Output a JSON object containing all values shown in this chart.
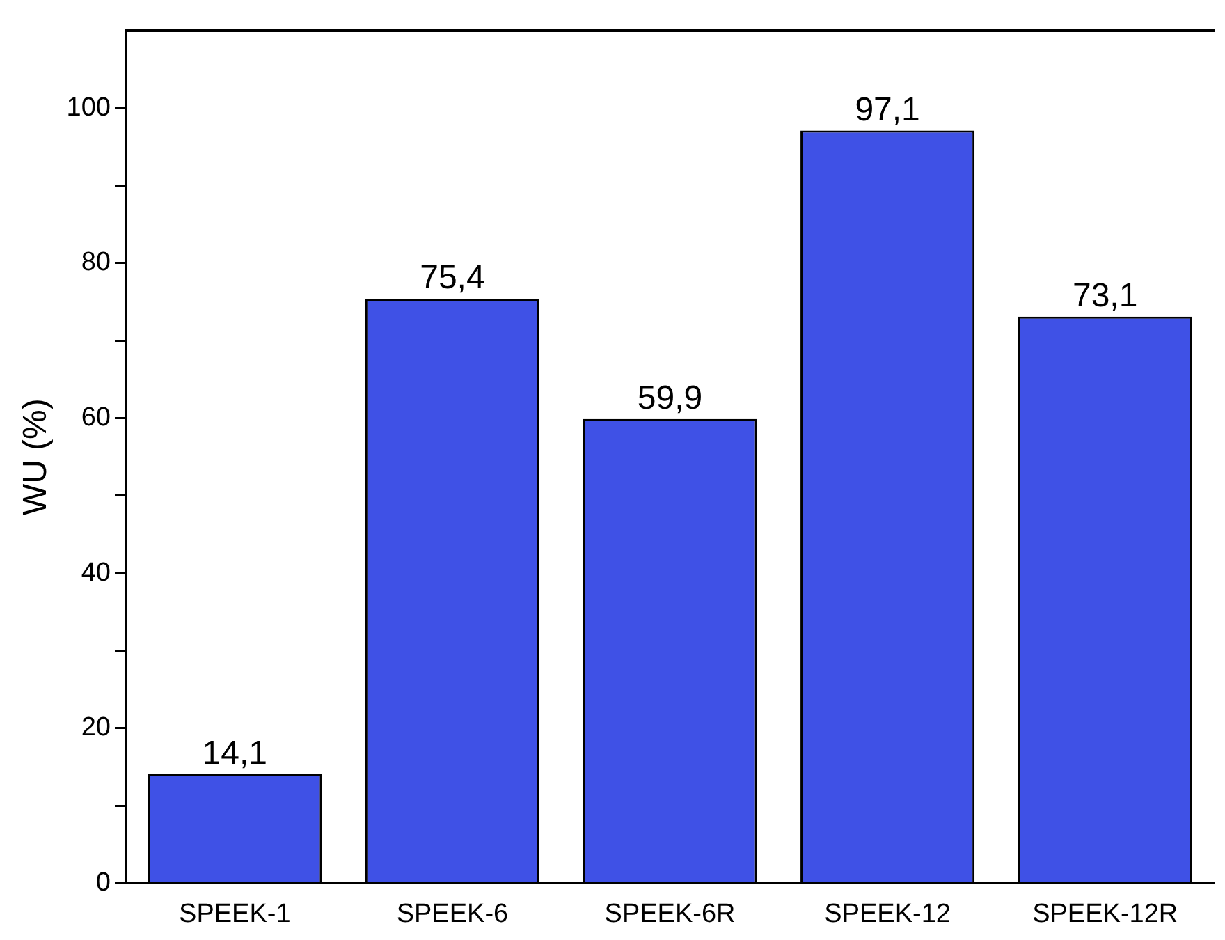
{
  "chart_data": {
    "type": "bar",
    "ylabel": "WU (%)",
    "categories": [
      "SPEEK-1",
      "SPEEK-6",
      "SPEEK-6R",
      "SPEEK-12",
      "SPEEK-12R"
    ],
    "values": [
      14.1,
      75.4,
      59.9,
      97.1,
      73.1
    ],
    "value_labels": [
      "14,1",
      "75,4",
      "59,9",
      "97,1",
      "73,1"
    ],
    "color": "#3f51e6",
    "ylim": [
      0,
      110
    ],
    "yticks": [
      0,
      {
        "value": 10,
        "label": null
      },
      20,
      {
        "value": 30,
        "label": null
      },
      40,
      {
        "value": 50,
        "label": null
      },
      60,
      {
        "value": 70,
        "label": null
      },
      80,
      {
        "value": 90,
        "label": null
      },
      100
    ],
    "grid": false,
    "legend": false
  }
}
